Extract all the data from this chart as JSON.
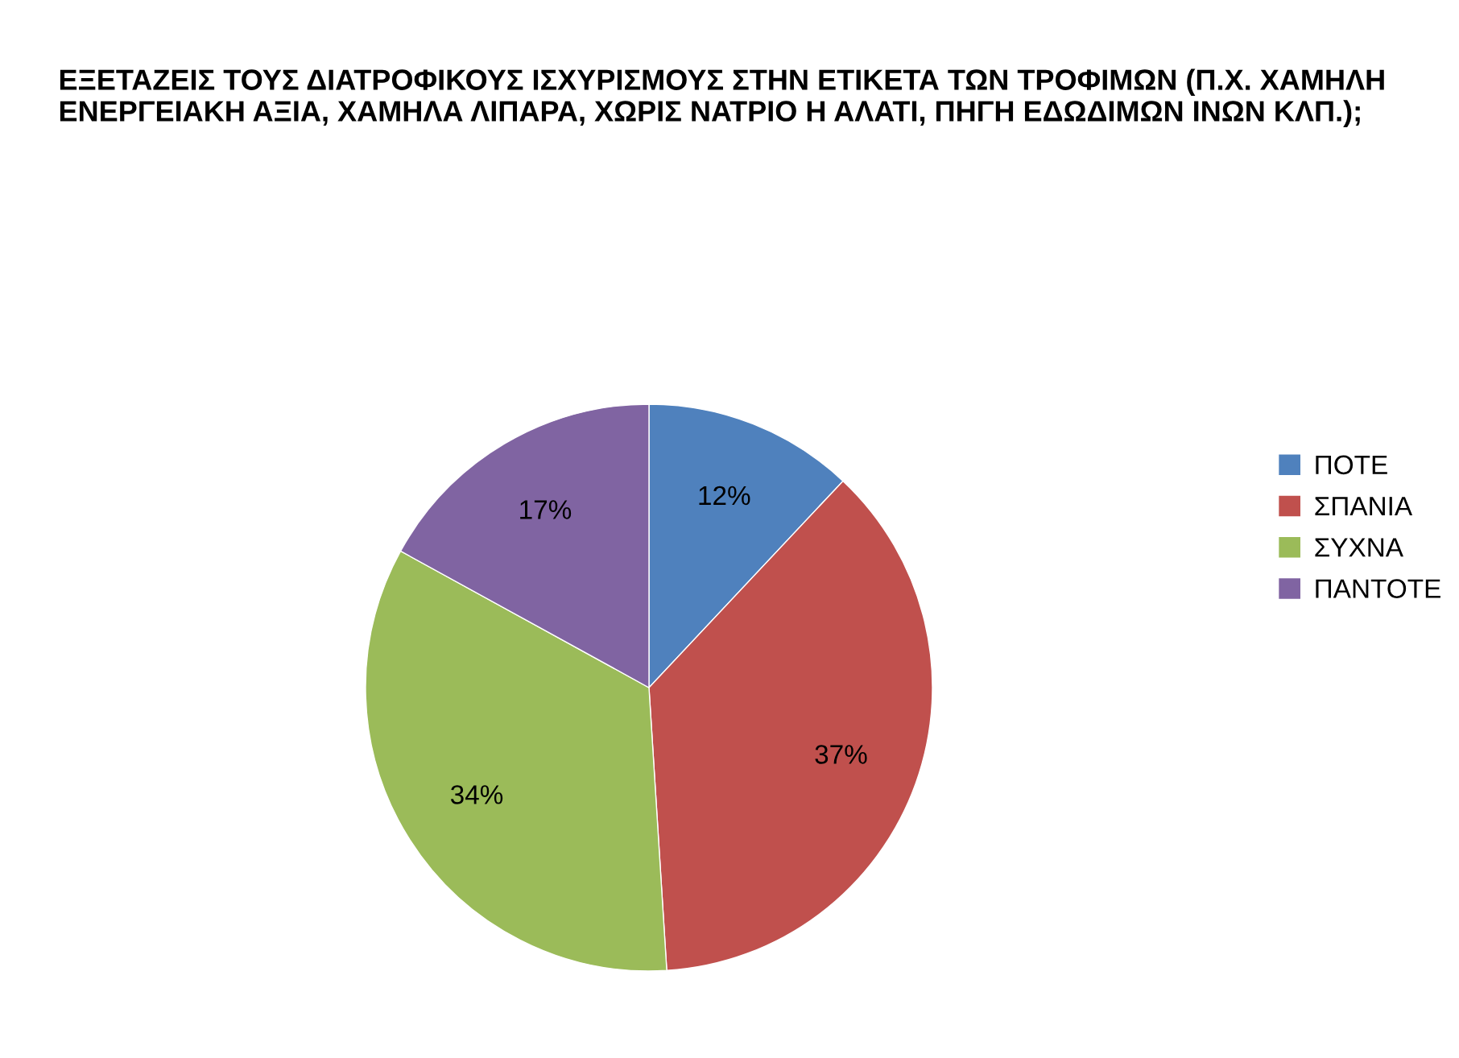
{
  "chart_data": {
    "type": "pie",
    "title": "ΕΞΕΤΑΖΕΙΣ ΤΟΥΣ ΔΙΑΤΡΟΦΙΚΟΥΣ ΙΣΧΥΡΙΣΜΟΥΣ ΣΤΗΝ ΕΤΙΚΕΤΑ ΤΩΝ ΤΡΟΦΙΜΩΝ (Π.Χ. ΧΑΜΗΛΗ ΕΝΕΡΓΕΙΑΚΗ ΑΞΙΑ, ΧΑΜΗΛΑ ΛΙΠΑΡΑ, ΧΩΡΙΣ ΝΑΤΡΙΟ Η ΑΛΑΤΙ, ΠΗΓΗ ΕΔΩΔΙΜΩΝ ΙΝΩΝ ΚΛΠ.);",
    "categories": [
      "ΠΟΤΕ",
      "ΣΠΑΝΙΑ",
      "ΣΥΧΝΑ",
      "ΠΑΝΤΟΤΕ"
    ],
    "values": [
      12,
      37,
      34,
      17
    ],
    "colors": [
      "#4f81bd",
      "#c0504d",
      "#9bbb59",
      "#8064a2"
    ],
    "value_labels": [
      "12%",
      "37%",
      "34%",
      "17%"
    ],
    "legend": "right"
  }
}
